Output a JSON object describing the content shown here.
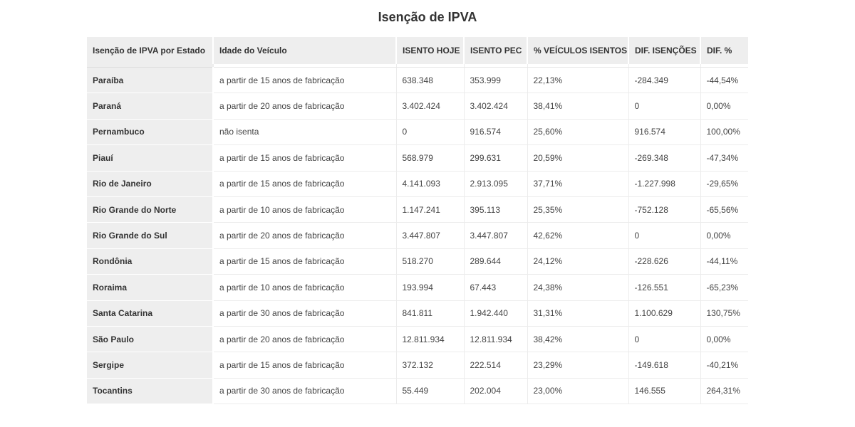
{
  "title": "Isenção de IPVA",
  "headers": [
    "Isenção de IPVA por Estado",
    "Idade do Veículo",
    "ISENTO HOJE",
    "ISENTO PEC",
    "% VEÍCULOS ISENTOS",
    "DIF. ISENÇÕES",
    "DIF. %"
  ],
  "rows": [
    [
      "Paraíba",
      "a partir de 15 anos de fabricação",
      "638.348",
      "353.999",
      "22,13%",
      "-284.349",
      "-44,54%"
    ],
    [
      "Paraná",
      "a partir de 20 anos de fabricação",
      "3.402.424",
      "3.402.424",
      "38,41%",
      "0",
      "0,00%"
    ],
    [
      "Pernambuco",
      "não isenta",
      "0",
      "916.574",
      "25,60%",
      "916.574",
      "100,00%"
    ],
    [
      "Piauí",
      "a partir de 15 anos de fabricação",
      "568.979",
      "299.631",
      "20,59%",
      "-269.348",
      "-47,34%"
    ],
    [
      "Rio de Janeiro",
      "a partir de 15 anos de fabricação",
      "4.141.093",
      "2.913.095",
      "37,71%",
      "-1.227.998",
      "-29,65%"
    ],
    [
      "Rio Grande do Norte",
      "a partir de 10 anos de fabricação",
      "1.147.241",
      "395.113",
      "25,35%",
      "-752.128",
      "-65,56%"
    ],
    [
      "Rio Grande do Sul",
      "a partir de 20 anos de fabricação",
      "3.447.807",
      "3.447.807",
      "42,62%",
      "0",
      "0,00%"
    ],
    [
      "Rondônia",
      "a partir de 15 anos de fabricação",
      "518.270",
      "289.644",
      "24,12%",
      "-228.626",
      "-44,11%"
    ],
    [
      "Roraima",
      "a partir de 10 anos de fabricação",
      "193.994",
      "67.443",
      "24,38%",
      "-126.551",
      "-65,23%"
    ],
    [
      "Santa Catarina",
      "a partir de 30 anos de fabricação",
      "841.811",
      "1.942.440",
      "31,31%",
      "1.100.629",
      "130,75%"
    ],
    [
      "São Paulo",
      "a partir de 20 anos de fabricação",
      "12.811.934",
      "12.811.934",
      "38,42%",
      "0",
      "0,00%"
    ],
    [
      "Sergipe",
      "a partir de 15 anos de fabricação",
      "372.132",
      "222.514",
      "23,29%",
      "-149.618",
      "-40,21%"
    ],
    [
      "Tocantins",
      "a partir de 30 anos de fabricação",
      "55.449",
      "202.004",
      "23,00%",
      "146.555",
      "264,31%"
    ]
  ]
}
